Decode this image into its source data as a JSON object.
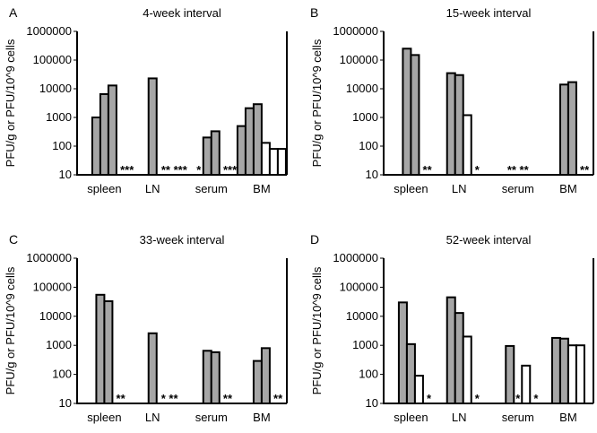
{
  "colors": {
    "filled_bar": "#a6a6a6",
    "open_bar": "#ffffff",
    "outline": "#000000"
  },
  "chart_data": [
    {
      "type": "bar",
      "panel": "A",
      "title": "4-week interval",
      "ylabel": "PFU/g or PFU/10^9 cells",
      "yscale": "log",
      "ylim": [
        10,
        1000000
      ],
      "yticks": [
        "10",
        "100",
        "1000",
        "10000",
        "100000",
        "1000000"
      ],
      "categories": [
        "spleen",
        "LN",
        "serum",
        "BM"
      ],
      "groups": [
        {
          "category": "spleen",
          "bars": [
            {
              "value": 1000,
              "style": "filled"
            },
            {
              "value": 6500,
              "style": "filled"
            },
            {
              "value": 13000,
              "style": "filled"
            }
          ],
          "annotation": "***"
        },
        {
          "category": "LN",
          "bars": [
            {
              "value": 23000,
              "style": "filled"
            }
          ],
          "annotation": "** ***"
        },
        {
          "category": "serum",
          "bars": [
            {
              "value": 200,
              "style": "filled"
            },
            {
              "value": 330,
              "style": "filled"
            }
          ],
          "pre_annotation": "*",
          "annotation": "***"
        },
        {
          "category": "BM",
          "bars": [
            {
              "value": 500,
              "style": "filled"
            },
            {
              "value": 2100,
              "style": "filled"
            },
            {
              "value": 2900,
              "style": "filled"
            },
            {
              "value": 130,
              "style": "open"
            },
            {
              "value": 80,
              "style": "open"
            },
            {
              "value": 80,
              "style": "open"
            }
          ],
          "annotation": ""
        }
      ]
    },
    {
      "type": "bar",
      "panel": "B",
      "title": "15-week interval",
      "ylabel": "PFU/g or PFU/10^9 cells",
      "yscale": "log",
      "ylim": [
        10,
        1000000
      ],
      "yticks": [
        "10",
        "100",
        "1000",
        "10000",
        "100000",
        "1000000"
      ],
      "categories": [
        "spleen",
        "LN",
        "serum",
        "BM"
      ],
      "groups": [
        {
          "category": "spleen",
          "bars": [
            {
              "value": 250000,
              "style": "filled"
            },
            {
              "value": 150000,
              "style": "filled"
            }
          ],
          "annotation": "**"
        },
        {
          "category": "LN",
          "bars": [
            {
              "value": 35000,
              "style": "filled"
            },
            {
              "value": 30000,
              "style": "filled"
            },
            {
              "value": 1200,
              "style": "open"
            }
          ],
          "annotation": "*"
        },
        {
          "category": "serum",
          "bars": [],
          "annotation": "** **"
        },
        {
          "category": "BM",
          "bars": [
            {
              "value": 14000,
              "style": "filled"
            },
            {
              "value": 17000,
              "style": "filled"
            }
          ],
          "annotation": "**"
        }
      ]
    },
    {
      "type": "bar",
      "panel": "C",
      "title": "33-week interval",
      "ylabel": "PFU/g or PFU/10^9 cells",
      "yscale": "log",
      "ylim": [
        10,
        1000000
      ],
      "yticks": [
        "10",
        "100",
        "1000",
        "10000",
        "100000",
        "1000000"
      ],
      "categories": [
        "spleen",
        "LN",
        "serum",
        "BM"
      ],
      "groups": [
        {
          "category": "spleen",
          "bars": [
            {
              "value": 55000,
              "style": "filled"
            },
            {
              "value": 33000,
              "style": "filled"
            }
          ],
          "annotation": "**"
        },
        {
          "category": "LN",
          "bars": [
            {
              "value": 2600,
              "style": "filled"
            }
          ],
          "annotation": "* **"
        },
        {
          "category": "serum",
          "bars": [
            {
              "value": 650,
              "style": "filled"
            },
            {
              "value": 580,
              "style": "filled"
            }
          ],
          "annotation": "**"
        },
        {
          "category": "BM",
          "bars": [
            {
              "value": 290,
              "style": "filled"
            },
            {
              "value": 800,
              "style": "filled"
            }
          ],
          "annotation": "**"
        }
      ]
    },
    {
      "type": "bar",
      "panel": "D",
      "title": "52-week interval",
      "ylabel": "PFU/g or PFU/10^9 cells",
      "yscale": "log",
      "ylim": [
        10,
        1000000
      ],
      "yticks": [
        "10",
        "100",
        "1000",
        "10000",
        "100000",
        "1000000"
      ],
      "categories": [
        "spleen",
        "LN",
        "serum",
        "BM"
      ],
      "groups": [
        {
          "category": "spleen",
          "bars": [
            {
              "value": 30000,
              "style": "filled"
            },
            {
              "value": 1100,
              "style": "filled"
            },
            {
              "value": 90,
              "style": "open"
            }
          ],
          "annotation": "*"
        },
        {
          "category": "LN",
          "bars": [
            {
              "value": 45000,
              "style": "filled"
            },
            {
              "value": 13000,
              "style": "filled"
            },
            {
              "value": 2000,
              "style": "open"
            }
          ],
          "annotation": "*"
        },
        {
          "category": "serum",
          "bars": [
            {
              "value": 950,
              "style": "filled"
            },
            {
              "value": 10,
              "style": "none"
            },
            {
              "value": 200,
              "style": "open"
            }
          ],
          "annotation": "*",
          "mid_annotation": "*"
        },
        {
          "category": "BM",
          "bars": [
            {
              "value": 1800,
              "style": "filled"
            },
            {
              "value": 1700,
              "style": "filled"
            },
            {
              "value": 1000,
              "style": "open"
            },
            {
              "value": 1000,
              "style": "open"
            }
          ],
          "annotation": ""
        }
      ]
    }
  ]
}
